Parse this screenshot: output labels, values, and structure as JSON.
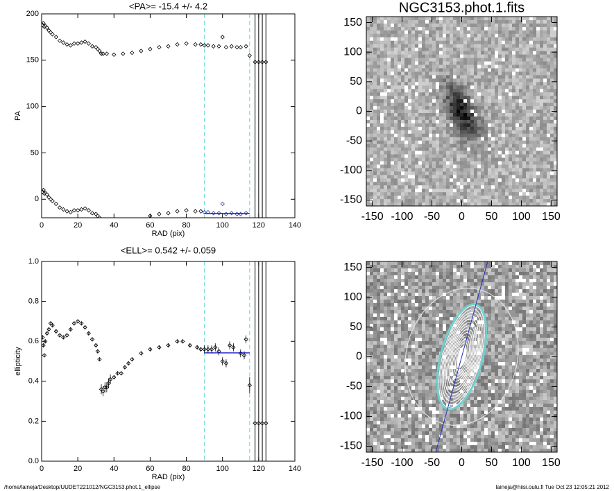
{
  "chart_data": [
    {
      "type": "scatter",
      "title": "<PA>= -15.4 +/-   4.2",
      "x_label": "RAD (pix)",
      "y_label": "PA",
      "xlim": [
        0,
        140
      ],
      "ylim": [
        -20,
        200
      ],
      "xticks": [
        0,
        20,
        40,
        60,
        80,
        100,
        120,
        140
      ],
      "yticks": [
        0,
        50,
        100,
        150,
        200
      ],
      "series": [
        {
          "color": "#000000",
          "x": [
            0.5,
            1,
            1.5,
            2,
            3,
            4,
            5,
            6,
            8,
            10,
            12,
            14,
            16,
            18,
            20,
            22,
            24,
            26,
            28,
            30,
            31,
            32,
            33,
            34,
            36,
            40,
            45,
            50,
            55,
            60,
            65,
            70,
            75,
            80,
            85,
            88,
            90,
            92,
            95,
            98,
            100,
            102,
            105,
            108,
            110,
            113,
            115,
            118,
            120,
            122,
            124
          ],
          "values": [
            188,
            190,
            186,
            187,
            185,
            182,
            180,
            178,
            175,
            171,
            169,
            167,
            166,
            168,
            168,
            169,
            170,
            168,
            165,
            164,
            162,
            160,
            157,
            157,
            157,
            156,
            157,
            158,
            160,
            162,
            164,
            165,
            167,
            168,
            167,
            167,
            166,
            166,
            165,
            165,
            175,
            164,
            165,
            164,
            164,
            165,
            155,
            148,
            148,
            148,
            148
          ]
        },
        {
          "color": "#000000",
          "x": [
            0.5,
            1,
            1.5,
            2,
            3,
            4,
            5,
            6,
            8,
            10,
            12,
            14,
            16,
            18,
            20,
            22,
            24,
            26,
            28,
            30,
            31,
            32,
            60,
            65,
            70,
            75,
            80,
            85,
            88
          ],
          "values": [
            8,
            10,
            6,
            7,
            5,
            2,
            0,
            -2,
            -5,
            -9,
            -11,
            -13,
            -14,
            -12,
            -12,
            -11,
            -10,
            -12,
            -15,
            -16,
            -18,
            -20,
            -18,
            -16,
            -15,
            -13,
            -12,
            -13,
            -13
          ]
        },
        {
          "color": "#3038b8",
          "x": [
            90,
            92,
            95,
            98,
            100,
            102,
            105,
            108,
            110,
            113
          ],
          "values": [
            -14,
            -14,
            -15,
            -15,
            -5,
            -16,
            -15,
            -16,
            -16,
            -15
          ]
        }
      ],
      "dashed_vlines": [
        90,
        115
      ],
      "dashed_color": "#5fd8d0",
      "solid_vlines": [
        118,
        120,
        122,
        124
      ],
      "solid_color": "#000000",
      "mean_line": {
        "y": -15.4,
        "x": [
          90,
          115
        ],
        "color": "#0000c0"
      }
    },
    {
      "type": "scatter",
      "title": "<ELL>= 0.542 +/-  0.059",
      "x_label": "RAD (pix)",
      "y_label": "ellipticity",
      "xlim": [
        0,
        140
      ],
      "ylim": [
        0,
        1
      ],
      "xticks": [
        0,
        20,
        40,
        60,
        80,
        100,
        120,
        140
      ],
      "yticks": [
        {
          "value": 0,
          "label": "0.0"
        },
        0.2,
        0.4,
        0.6,
        0.8,
        {
          "value": 1,
          "label": "1.0"
        }
      ],
      "series": [
        {
          "color": "#000000",
          "x": [
            0.5,
            1,
            1.5,
            2,
            3,
            4,
            5,
            6,
            8,
            10,
            12,
            14,
            16,
            18,
            20,
            22,
            24,
            26,
            28,
            30,
            31,
            32,
            33,
            34,
            35,
            36,
            37,
            38,
            40,
            42,
            44,
            46,
            48,
            50,
            55,
            60,
            65,
            70,
            75,
            78,
            82,
            86,
            88,
            90,
            92,
            94,
            96,
            98,
            100,
            102,
            104,
            106,
            110,
            112,
            113,
            115,
            118,
            120,
            122,
            124
          ],
          "values": [
            0.62,
            0.58,
            0.53,
            0.6,
            0.64,
            0.66,
            0.69,
            0.68,
            0.65,
            0.63,
            0.62,
            0.63,
            0.66,
            0.69,
            0.7,
            0.69,
            0.67,
            0.64,
            0.61,
            0.58,
            0.55,
            0.51,
            0.36,
            0.35,
            0.37,
            0.37,
            0.39,
            0.41,
            0.42,
            0.44,
            0.44,
            0.47,
            0.49,
            0.51,
            0.54,
            0.56,
            0.57,
            0.58,
            0.6,
            0.6,
            0.58,
            0.57,
            0.56,
            0.56,
            0.56,
            0.56,
            0.57,
            0.55,
            0.5,
            0.49,
            0.58,
            0.57,
            0.54,
            0.53,
            0.61,
            0.38,
            0.19,
            0.19,
            0.19,
            0.19
          ],
          "errors": [
            0.01,
            0.01,
            0.01,
            0.01,
            0.01,
            0.01,
            0.01,
            0.01,
            0.01,
            0.01,
            0.01,
            0.01,
            0.01,
            0.01,
            0.01,
            0.01,
            0.01,
            0.01,
            0.01,
            0.01,
            0.01,
            0.01,
            0.025,
            0.025,
            0.025,
            0.025,
            0.025,
            0.025,
            0.01,
            0.01,
            0.01,
            0.01,
            0.01,
            0.01,
            0.01,
            0.01,
            0.01,
            0.01,
            0.01,
            0.01,
            0.01,
            0.01,
            0.01,
            0.02,
            0.02,
            0.02,
            0.02,
            0.02,
            0.02,
            0.02,
            0.02,
            0.02,
            0.02,
            0.02,
            0.02,
            0.04,
            0,
            0,
            0,
            0
          ]
        }
      ],
      "dashed_vlines": [
        90,
        115
      ],
      "dashed_color": "#5fd8d0",
      "solid_vlines": [
        118,
        120,
        122,
        124
      ],
      "solid_color": "#000000",
      "mean_line": {
        "y": 0.542,
        "x": [
          90,
          115
        ],
        "color": "#0000c0"
      }
    },
    {
      "type": "image",
      "title": "NGC3153.phot.1.fits",
      "xlim": [
        -160,
        160
      ],
      "ylim": [
        -160,
        160
      ],
      "xticks": [
        -150,
        -100,
        -50,
        0,
        50,
        100,
        150
      ],
      "yticks": [
        -150,
        -100,
        -50,
        0,
        50,
        100,
        150
      ]
    },
    {
      "type": "image",
      "contours": true,
      "xlim": [
        -160,
        160
      ],
      "ylim": [
        -160,
        160
      ],
      "xticks": [
        -150,
        -100,
        -50,
        0,
        50,
        100,
        150
      ],
      "yticks": [
        -150,
        -100,
        -50,
        0,
        50,
        100,
        150
      ]
    }
  ],
  "footer": {
    "left": "/home/laineja/Desktop/UUDET221012/NGC3153.phot.1_ellipse",
    "right": "laineja@hiisi.oulu.fi  Tue Oct 23 12:05:21 2012"
  }
}
